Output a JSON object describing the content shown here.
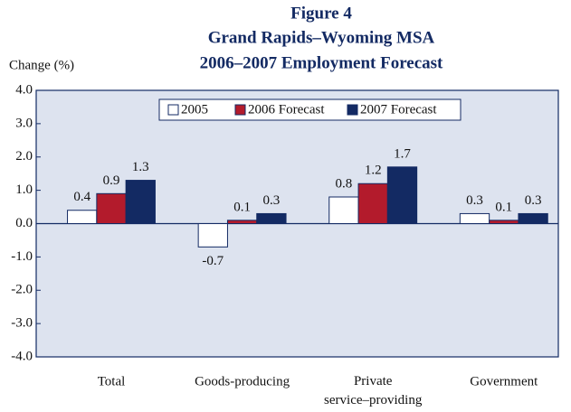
{
  "chart_data": {
    "type": "bar",
    "title": [
      "Figure 4",
      "Grand Rapids–Wyoming MSA",
      "2006–2007 Employment Forecast"
    ],
    "y_label": "Change (%)",
    "categories": [
      "Total",
      "Goods-producing",
      "Private service–providing",
      "Government"
    ],
    "series": [
      {
        "name": "2005",
        "color": "#ffffff",
        "values": [
          0.4,
          -0.7,
          0.8,
          0.3
        ]
      },
      {
        "name": "2006 Forecast",
        "color": "#b31b2c",
        "values": [
          0.9,
          0.1,
          1.2,
          0.1
        ]
      },
      {
        "name": "2007 Forecast",
        "color": "#132a63",
        "values": [
          1.3,
          0.3,
          1.7,
          0.3
        ]
      }
    ],
    "ylim": [
      -4,
      4
    ],
    "yticks": [
      {
        "value": 4,
        "label": "4.0"
      },
      {
        "value": 3,
        "label": "3.0"
      },
      {
        "value": 2,
        "label": "2.0"
      },
      {
        "value": 1,
        "label": "1.0"
      },
      {
        "value": 0,
        "label": "0.0"
      },
      {
        "value": -1,
        "label": "-1.0"
      },
      {
        "value": -2,
        "label": "-2.0"
      },
      {
        "value": -3,
        "label": "-3.0"
      },
      {
        "value": -4,
        "label": "-4.0"
      }
    ],
    "legend": "top"
  }
}
